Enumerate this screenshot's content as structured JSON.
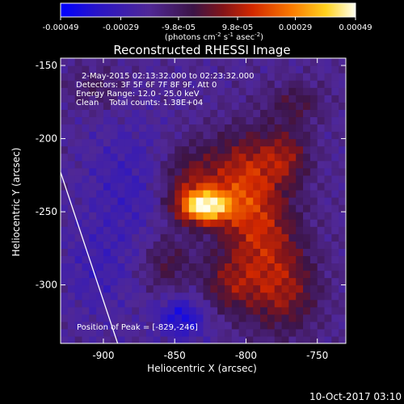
{
  "chart_data": {
    "type": "heatmap",
    "title": "Reconstructed RHESSI Image",
    "xlabel": "Heliocentric X (arcsec)",
    "ylabel": "Heliocentric Y (arcsec)",
    "xlim": [
      -930,
      -730
    ],
    "ylim": [
      -340,
      -145
    ],
    "xticks": [
      -900,
      -850,
      -800,
      -750
    ],
    "yticks": [
      -150,
      -200,
      -250,
      -300
    ],
    "colorbar": {
      "min": -0.00049,
      "max": 0.00049,
      "ticks": [
        -0.00049,
        -0.00029,
        -9.8e-05,
        9.8e-05,
        0.00029,
        0.00049
      ],
      "tick_labels": [
        "-0.00049",
        "-0.00029",
        "-9.8e-05",
        "9.8e-05",
        "0.00029",
        "0.00049"
      ],
      "unit_label": "(photons cm-2 s-1 asec-2)"
    },
    "annotations": [
      "2-May-2015 02:13:32.000 to 02:23:32.000",
      "Detectors: 3F 5F 6F 7F 8F 9F, Att 0",
      "Energy Range: 12.0 - 25.0 keV",
      "Clean    Total counts: 1.38E+04"
    ],
    "peak_label": "Position of Peak = [-829,-246]",
    "peak": [
      -829,
      -246
    ],
    "blobs": [
      {
        "x": -829,
        "y": -246,
        "sx": 13,
        "sy": 8,
        "amp": 0.00056
      },
      {
        "x": -838,
        "y": -228,
        "sx": 16,
        "sy": 18,
        "amp": 0.00022
      },
      {
        "x": -800,
        "y": -225,
        "sx": 16,
        "sy": 22,
        "amp": 0.00028
      },
      {
        "x": -772,
        "y": -212,
        "sx": 12,
        "sy": 14,
        "amp": 0.00022
      },
      {
        "x": -790,
        "y": -265,
        "sx": 20,
        "sy": 22,
        "amp": 0.00026
      },
      {
        "x": -775,
        "y": -305,
        "sx": 18,
        "sy": 20,
        "amp": 0.00024
      },
      {
        "x": -812,
        "y": -300,
        "sx": 14,
        "sy": 14,
        "amp": 0.00018
      },
      {
        "x": -855,
        "y": -285,
        "sx": 12,
        "sy": 14,
        "amp": 0.00015
      },
      {
        "x": -765,
        "y": -175,
        "sx": 14,
        "sy": 10,
        "amp": 0.00014
      },
      {
        "x": -905,
        "y": -165,
        "sx": 14,
        "sy": 10,
        "amp": 0.0001
      },
      {
        "x": -845,
        "y": -322,
        "sx": 12,
        "sy": 10,
        "amp": -0.00022
      },
      {
        "x": -880,
        "y": -230,
        "sx": 22,
        "sy": 30,
        "amp": -0.0001
      },
      {
        "x": -905,
        "y": -290,
        "sx": 18,
        "sy": 24,
        "amp": -8e-05
      }
    ],
    "limb_line": [
      [
        -930,
        -223
      ],
      [
        -890,
        -340
      ]
    ]
  },
  "footer": {
    "timestamp": "10-Oct-2017 03:10"
  }
}
